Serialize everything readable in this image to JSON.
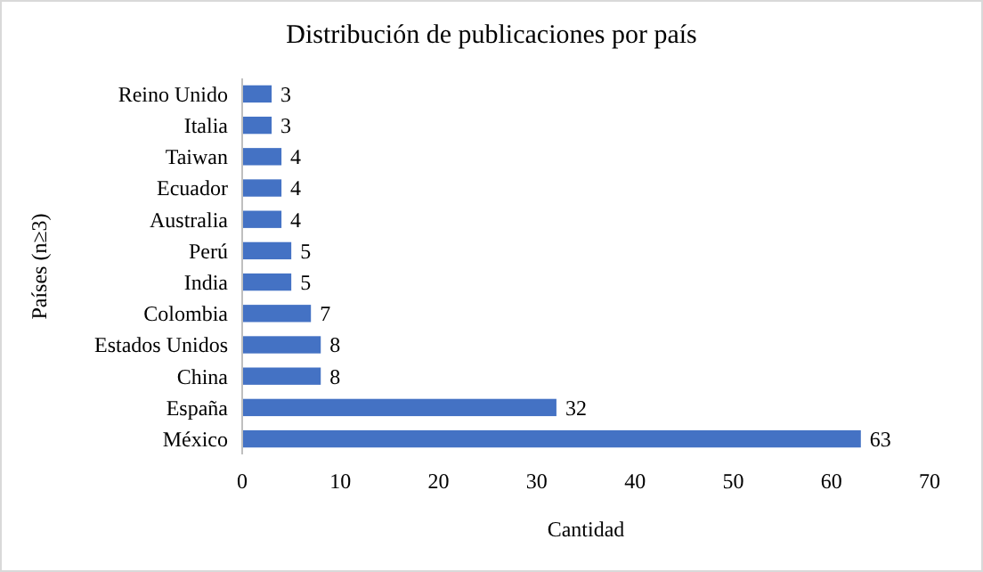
{
  "chart_data": {
    "type": "bar",
    "orientation": "horizontal",
    "title": "Distribución de publicaciones por país",
    "xlabel": "Cantidad",
    "ylabel": "Países (n≥3)",
    "categories": [
      "Reino Unido",
      "Italia",
      "Taiwan",
      "Ecuador",
      "Australia",
      "Perú",
      "India",
      "Colombia",
      "Estados Unidos",
      "China",
      "España",
      "México"
    ],
    "values": [
      3,
      3,
      4,
      4,
      4,
      5,
      5,
      7,
      8,
      8,
      32,
      63
    ],
    "color": "#4472c4",
    "xlim": [
      0,
      70
    ],
    "xticks": [
      0,
      10,
      20,
      30,
      40,
      50,
      60,
      70
    ],
    "grid": false,
    "data_labels": true
  }
}
